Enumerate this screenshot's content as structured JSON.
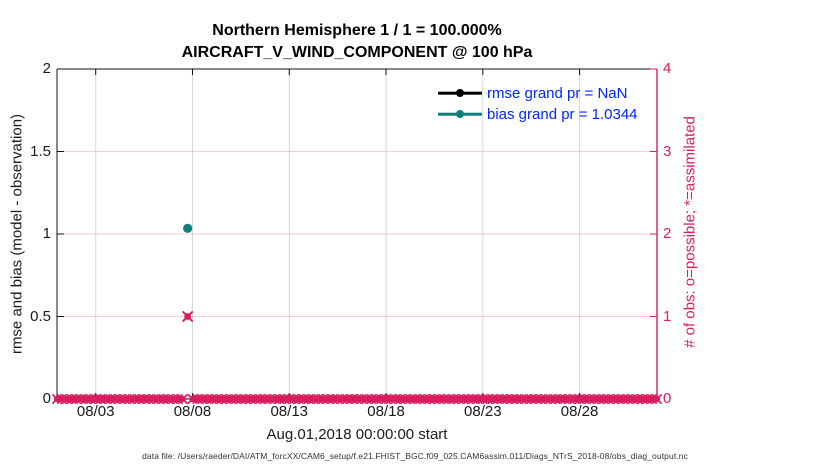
{
  "chart_data": {
    "type": "scatter",
    "title": "Northern Hemisphere 1 / 1 = 100.000%",
    "subtitle": "AIRCRAFT_V_WIND_COMPONENT @ 100 hPa",
    "xlabel": "Aug.01,2018 00:00:00 start",
    "ylabel_left": "rmse and bias (model - observation)",
    "ylabel_right": "# of obs: o=possible; *=assimilated",
    "x_range_days": [
      0,
      31
    ],
    "x_ticks": [
      {
        "day": 2,
        "label": "08/03"
      },
      {
        "day": 7,
        "label": "08/08"
      },
      {
        "day": 12,
        "label": "08/13"
      },
      {
        "day": 17,
        "label": "08/18"
      },
      {
        "day": 22,
        "label": "08/23"
      },
      {
        "day": 27,
        "label": "08/28"
      }
    ],
    "ylim_left": [
      0,
      2
    ],
    "y_ticks_left": [
      {
        "v": 0,
        "label": "0"
      },
      {
        "v": 0.5,
        "label": "0.5"
      },
      {
        "v": 1,
        "label": "1"
      },
      {
        "v": 1.5,
        "label": "1.5"
      },
      {
        "v": 2,
        "label": "2"
      }
    ],
    "ylim_right": [
      0,
      4
    ],
    "y_ticks_right": [
      {
        "v": 0,
        "label": "0"
      },
      {
        "v": 1,
        "label": "1"
      },
      {
        "v": 2,
        "label": "2"
      },
      {
        "v": 3,
        "label": "3"
      },
      {
        "v": 4,
        "label": "4"
      }
    ],
    "series": [
      {
        "name": "rmse",
        "grand_pr": "NaN",
        "color": "#000000",
        "points": []
      },
      {
        "name": "bias",
        "grand_pr": "1.0344",
        "color": "#0e7f7c",
        "points": [
          {
            "day": 6.75,
            "value": 1.0344
          }
        ]
      }
    ],
    "obs_counts": {
      "color": "#d81e5f",
      "step_days": 0.25,
      "nonzero": [
        {
          "day": 6.75,
          "possible": 1,
          "assimilated": 1
        }
      ],
      "zero_elsewhere": true
    },
    "legend": [
      {
        "label": "rmse grand pr = NaN",
        "line_color": "#000000"
      },
      {
        "label": "bias grand pr = 1.0344",
        "line_color": "#0e7f7c"
      }
    ],
    "legend_text_color": "#0026ff",
    "grid": {
      "h_color": "rgba(216,30,95,0.22)",
      "v_color": "#d8d8d8"
    },
    "axis_colors": {
      "left": "#1a1a1a",
      "right": "#d81e5f"
    }
  },
  "footer": {
    "datafile_label": "data file: /Users/raeder/DAI/ATM_forcXX/CAM6_setup/f.e21.FHIST_BGC.f09_025.CAM6assim.011/Diags_NTrS_2018-08/obs_diag_output.nc"
  }
}
